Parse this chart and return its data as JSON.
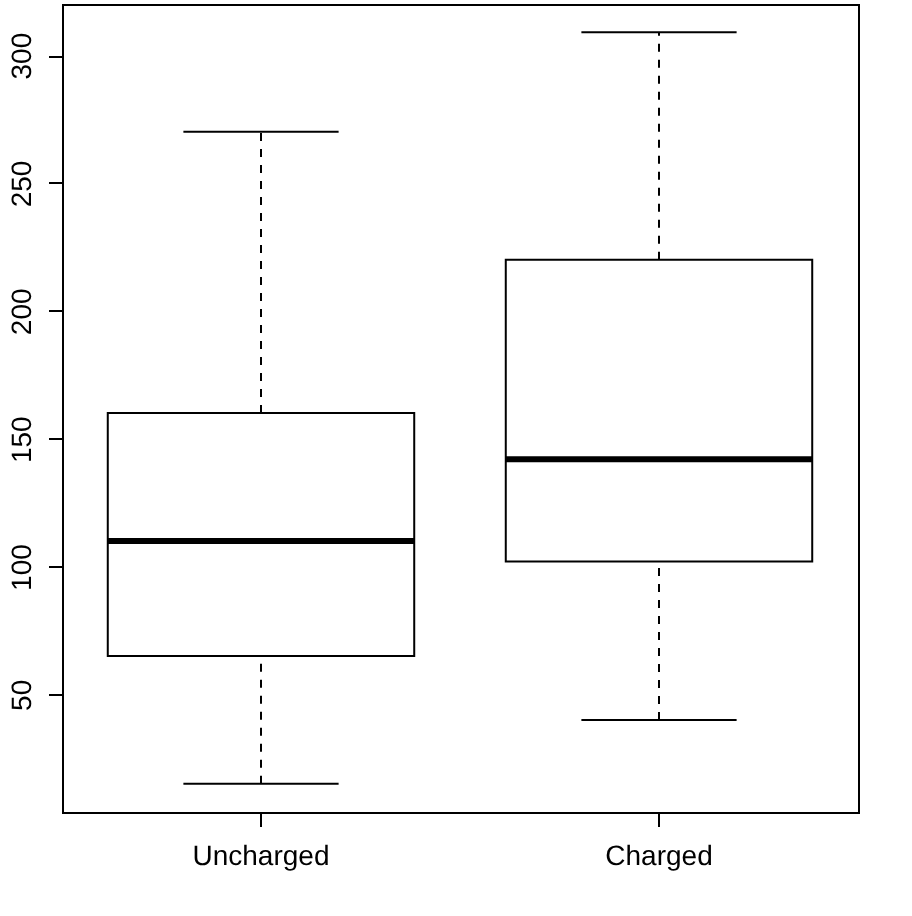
{
  "chart_data": {
    "type": "box",
    "categories": [
      "Uncharged",
      "Charged"
    ],
    "boxes": [
      {
        "low": 15,
        "q1": 65,
        "median": 110,
        "q3": 160,
        "high": 270
      },
      {
        "low": 40,
        "q1": 102,
        "median": 142,
        "q3": 220,
        "high": 309
      }
    ],
    "ylim": [
      4,
      320
    ],
    "yticks": [
      50,
      100,
      150,
      200,
      250,
      300
    ],
    "grid": false
  }
}
